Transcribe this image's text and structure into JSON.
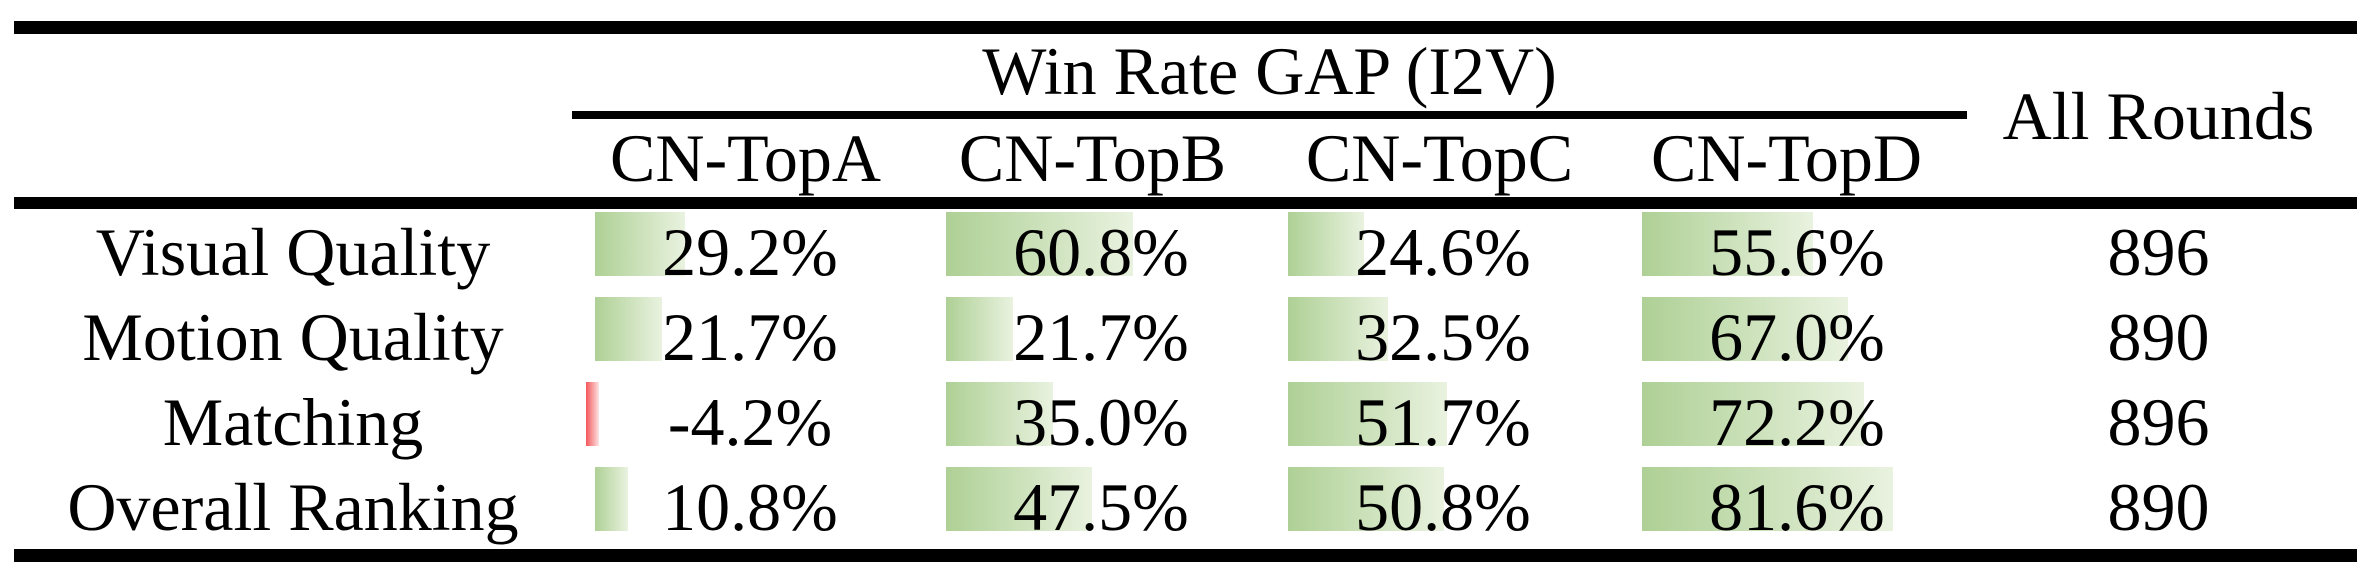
{
  "chart_data": {
    "type": "table",
    "title": "Win Rate GAP (I2V)",
    "extra_column": "All Rounds",
    "columns": [
      "CN-TopA",
      "CN-TopB",
      "CN-TopC",
      "CN-TopD"
    ],
    "rows": [
      {
        "label": "Visual Quality",
        "values": [
          29.2,
          60.8,
          24.6,
          55.6
        ],
        "display": [
          "29.2%",
          "60.8%",
          "24.6%",
          "55.6%"
        ],
        "all_rounds": "896"
      },
      {
        "label": "Motion Quality",
        "values": [
          21.7,
          21.7,
          32.5,
          67.0
        ],
        "display": [
          "21.7%",
          "21.7%",
          "32.5%",
          "67.0%"
        ],
        "all_rounds": "890"
      },
      {
        "label": "Matching",
        "values": [
          -4.2,
          35.0,
          51.7,
          72.2
        ],
        "display": [
          "-4.2%",
          "35.0%",
          "51.7%",
          "72.2%"
        ],
        "all_rounds": "896"
      },
      {
        "label": "Overall Ranking",
        "values": [
          10.8,
          47.5,
          50.8,
          81.6
        ],
        "display": [
          "10.8%",
          "47.5%",
          "50.8%",
          "81.6%"
        ],
        "all_rounds": "890"
      }
    ],
    "legend_position": "none",
    "grid": false,
    "bar_axis_range_percent": [
      0,
      100
    ]
  },
  "colors": {
    "positive_bar_start": "#aed095",
    "positive_bar_end": "#e9f2df",
    "negative_bar_start": "#f4575a",
    "negative_bar_end": "#fde4e4",
    "rule": "#000000",
    "text": "#000000"
  }
}
